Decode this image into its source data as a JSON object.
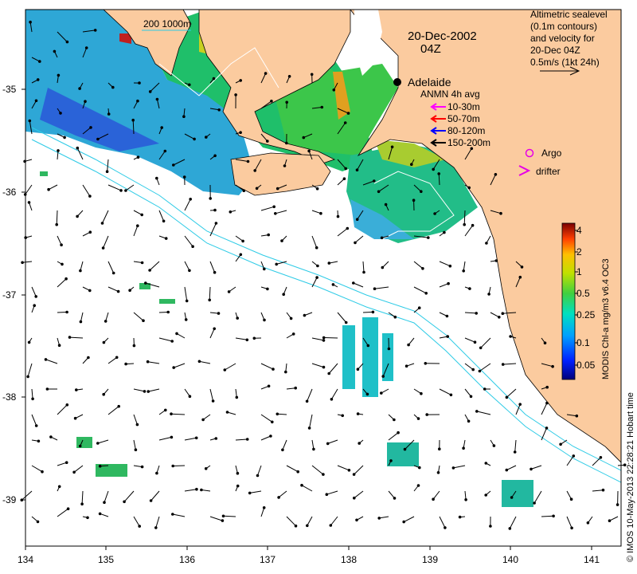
{
  "map": {
    "date_line1": "20-Dec-2002",
    "date_line2": "04Z",
    "place_label": "Adelaide",
    "isobath_label": "200  1000m",
    "altimetry_note": [
      "Altimetric sealevel",
      "(0.1m contours)",
      "and velocity for",
      "20-Dec 04Z",
      "0.5m/s (1kt 24h)"
    ],
    "anmn_title": "ANMN 4h avg",
    "anmn_legend": [
      {
        "label": "10-30m",
        "color": "#ff00ff"
      },
      {
        "label": "50-70m",
        "color": "#ff0000"
      },
      {
        "label": "80-120m",
        "color": "#0000ff"
      },
      {
        "label": "150-200m",
        "color": "#000000"
      }
    ],
    "argo_label": "Argo",
    "drifter_label": "drifter",
    "marker_color": "#e600e6",
    "land_color": "#fbcb9f",
    "x_ticks": [
      "134",
      "135",
      "136",
      "137",
      "138",
      "139",
      "140",
      "141"
    ],
    "y_ticks": [
      "-35",
      "-36",
      "-37",
      "-38",
      "-39"
    ],
    "colorbar": {
      "title": "MODIS Chl-a mg/m3 v6.4 OC3",
      "ticks": [
        "0.05",
        "0.1",
        "0.25",
        "0.5",
        "1",
        "2",
        "4"
      ]
    },
    "credit": "© IMOS 10-May-2013 22:28:21 Hobart time"
  }
}
